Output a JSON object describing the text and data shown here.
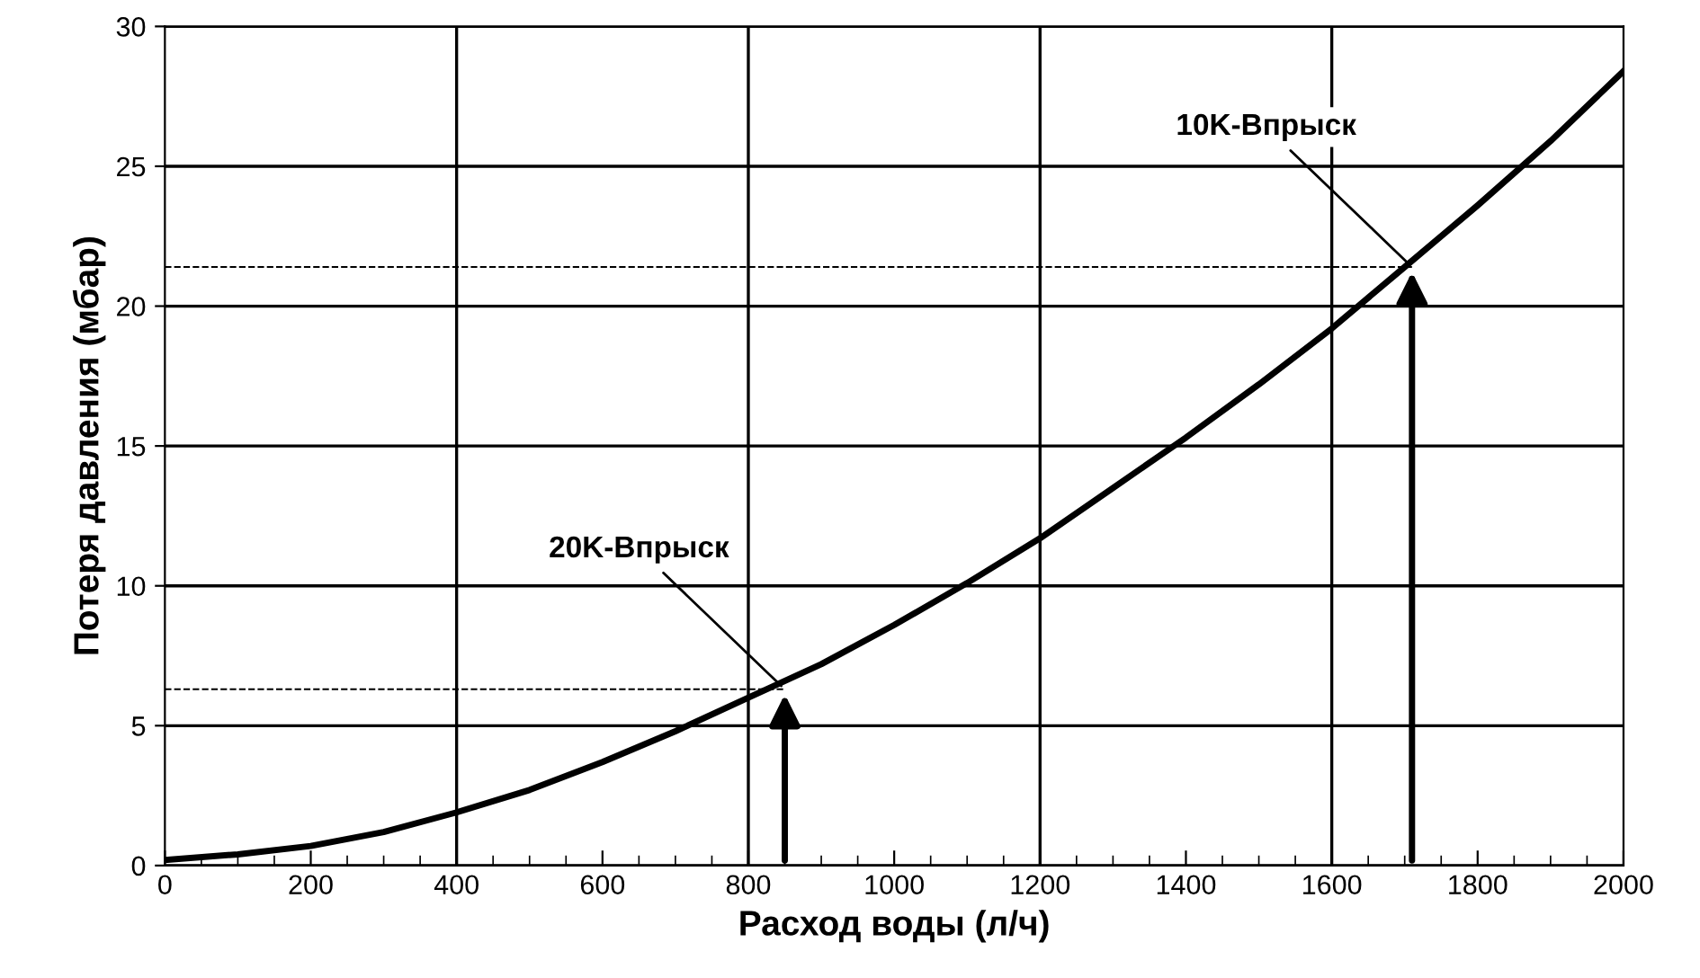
{
  "chart_data": {
    "type": "line",
    "xlabel": "Расход воды (л/ч)",
    "ylabel": "Потеря давления (мбар)",
    "x": [
      0,
      100,
      200,
      300,
      400,
      500,
      600,
      700,
      800,
      900,
      1000,
      1100,
      1200,
      1300,
      1400,
      1500,
      1600,
      1700,
      1800,
      1900,
      2000
    ],
    "series": [
      {
        "color": "#000000",
        "values": [
          0.2,
          0.4,
          0.7,
          1.2,
          1.9,
          2.7,
          3.7,
          4.8,
          6.0,
          7.2,
          8.6,
          10.1,
          11.7,
          13.5,
          15.3,
          17.2,
          19.2,
          21.4,
          23.6,
          25.9,
          28.4
        ]
      }
    ],
    "xlim": [
      0,
      2000
    ],
    "ylim": [
      0,
      30
    ],
    "xticks": [
      0,
      200,
      400,
      600,
      800,
      1000,
      1200,
      1400,
      1600,
      1800,
      2000
    ],
    "yticks": [
      0,
      5,
      10,
      15,
      20,
      25,
      30
    ],
    "grid": "y",
    "marker": "none",
    "line_style": "solid",
    "ref_lines": [
      {
        "axis": "x",
        "value": 400,
        "color": "#000000",
        "line_style": "solid"
      },
      {
        "axis": "x",
        "value": 800,
        "color": "#000000",
        "line_style": "solid"
      },
      {
        "axis": "x",
        "value": 1200,
        "color": "#000000",
        "line_style": "solid"
      },
      {
        "axis": "x",
        "value": 1600,
        "color": "#000000",
        "line_style": "solid"
      },
      {
        "axis": "y",
        "value": 6.3,
        "color": "#000000",
        "line_style": "dashed"
      },
      {
        "axis": "y",
        "value": 21.4,
        "color": "#000000",
        "line_style": "dashed"
      }
    ],
    "annotations": [
      {
        "text": "20K-Впрыск",
        "x": 850,
        "y": 6.3
      },
      {
        "text": "10K-Впрыск",
        "x": 1710,
        "y": 21.4
      }
    ]
  }
}
